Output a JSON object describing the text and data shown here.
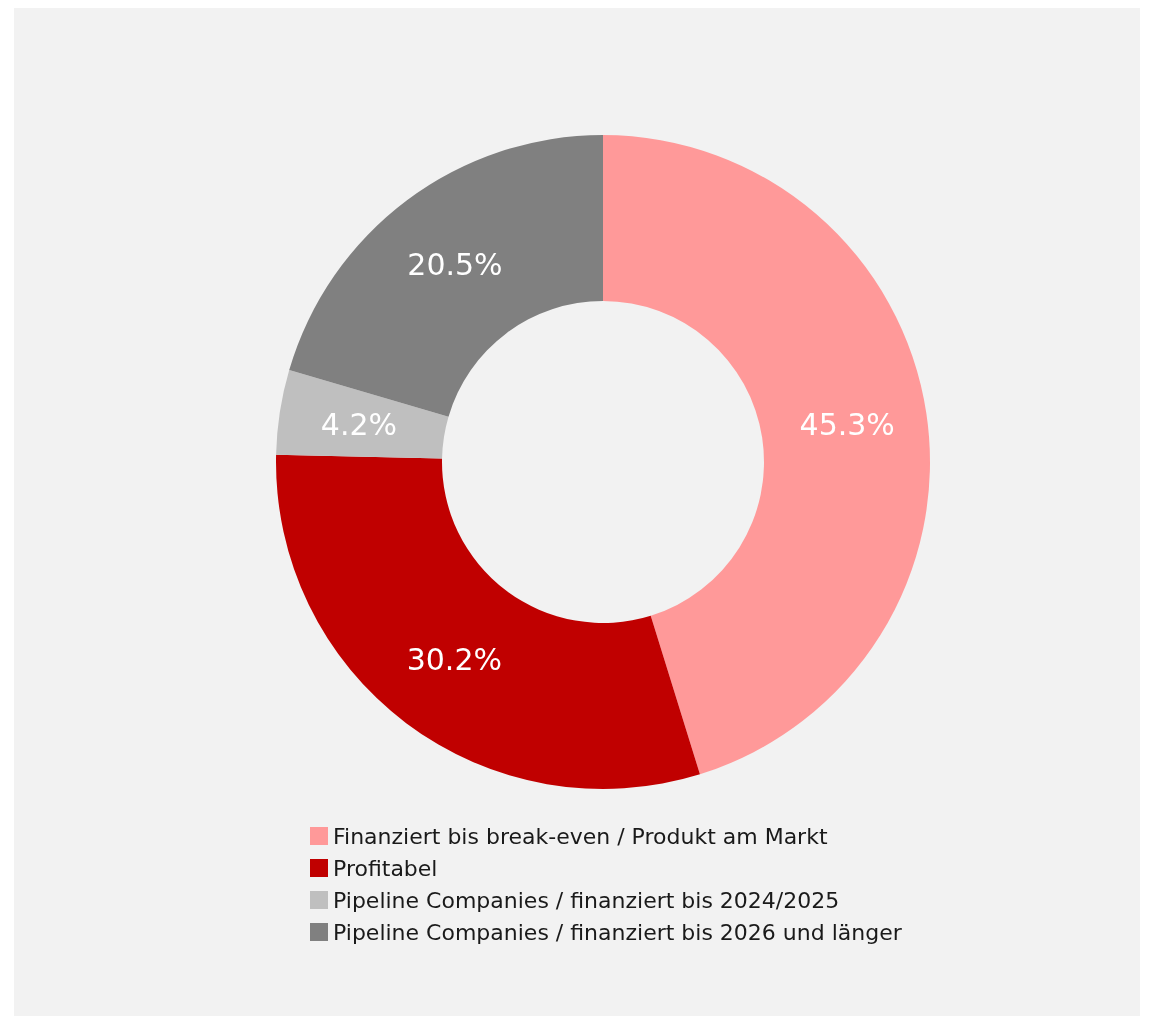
{
  "chart_data": {
    "type": "donut",
    "categories": [
      "Finanziert bis break-even / Produkt am Markt",
      "Profitabel",
      "Pipeline Companies / finanziert bis 2024/2025",
      "Pipeline Companies / finanziert bis 2026 und länger"
    ],
    "values": [
      45.3,
      30.2,
      4.2,
      20.5
    ],
    "value_labels": [
      "45.3%",
      "30.2%",
      "4.2%",
      "20.5%"
    ],
    "colors": [
      "#ff9999",
      "#c00000",
      "#bfbfbf",
      "#808080"
    ],
    "legend": "bottom"
  }
}
